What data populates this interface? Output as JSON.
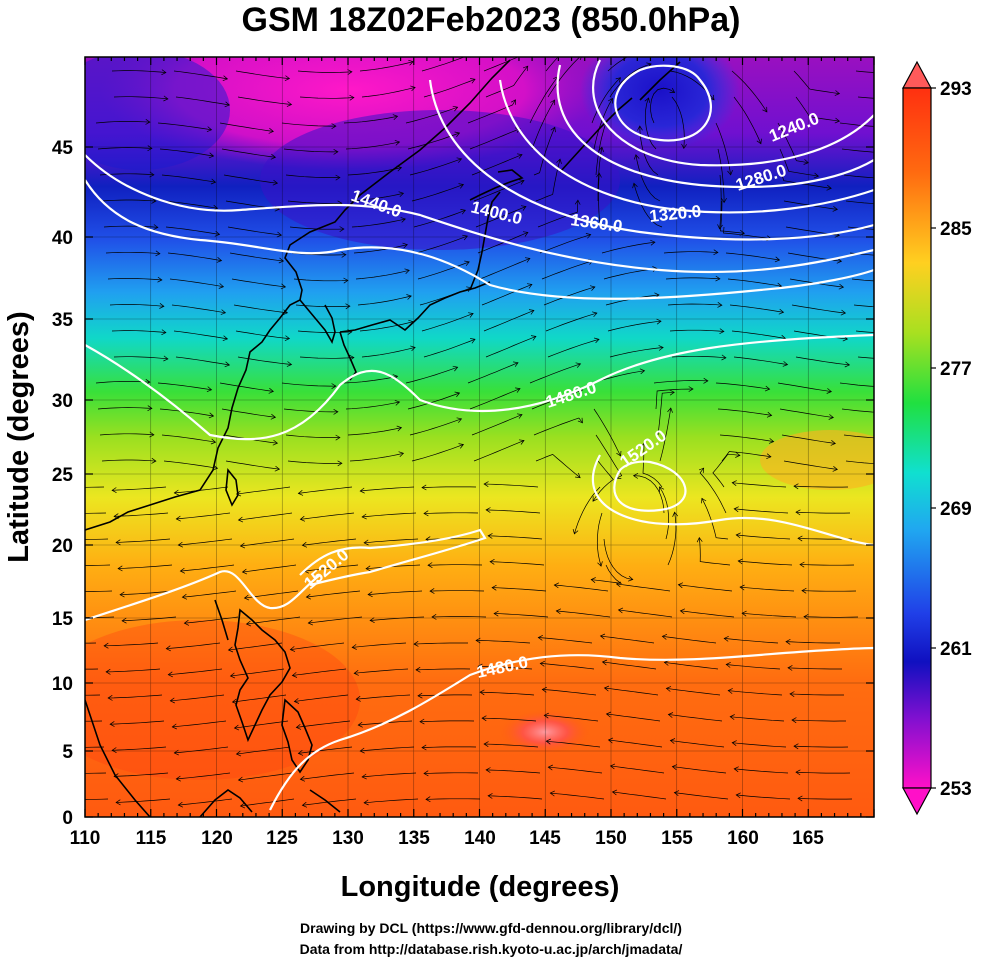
{
  "title": "GSM 18Z02Feb2023 (850.0hPa)",
  "credits": {
    "drawing": "Drawing by DCL (https://www.gfd-dennou.org/library/dcl/)",
    "data": "Data from http://database.rish.kyoto-u.ac.jp/arch/jmadata/"
  },
  "axes": {
    "xlabel": "Longitude (degrees)",
    "ylabel": "Latitude  (degrees)",
    "xticks": [
      "110",
      "115",
      "120",
      "125",
      "130",
      "135",
      "140",
      "145",
      "150",
      "155",
      "160",
      "165"
    ],
    "yticks": [
      "0",
      "5",
      "10",
      "15",
      "20",
      "25",
      "30",
      "35",
      "40",
      "45"
    ]
  },
  "colorbar": {
    "labels": [
      "293",
      "285",
      "277",
      "269",
      "261",
      "253"
    ]
  },
  "contour_labels": [
    {
      "text": "1240.0",
      "id": "c1240"
    },
    {
      "text": "1280.0",
      "id": "c1280"
    },
    {
      "text": "1320.0",
      "id": "c1320"
    },
    {
      "text": "1360.0",
      "id": "c1360"
    },
    {
      "text": "1400.0",
      "id": "c1400"
    },
    {
      "text": "1440.0",
      "id": "c1440"
    },
    {
      "text": "1480.0",
      "id": "c1480a"
    },
    {
      "text": "1520.0",
      "id": "c1520a"
    },
    {
      "text": "1520.0",
      "id": "c1520b"
    },
    {
      "text": "1480.0",
      "id": "c1480b"
    }
  ],
  "colors": {
    "contour": "#ffffff",
    "streamline": "#000000",
    "coast": "#000000"
  }
}
